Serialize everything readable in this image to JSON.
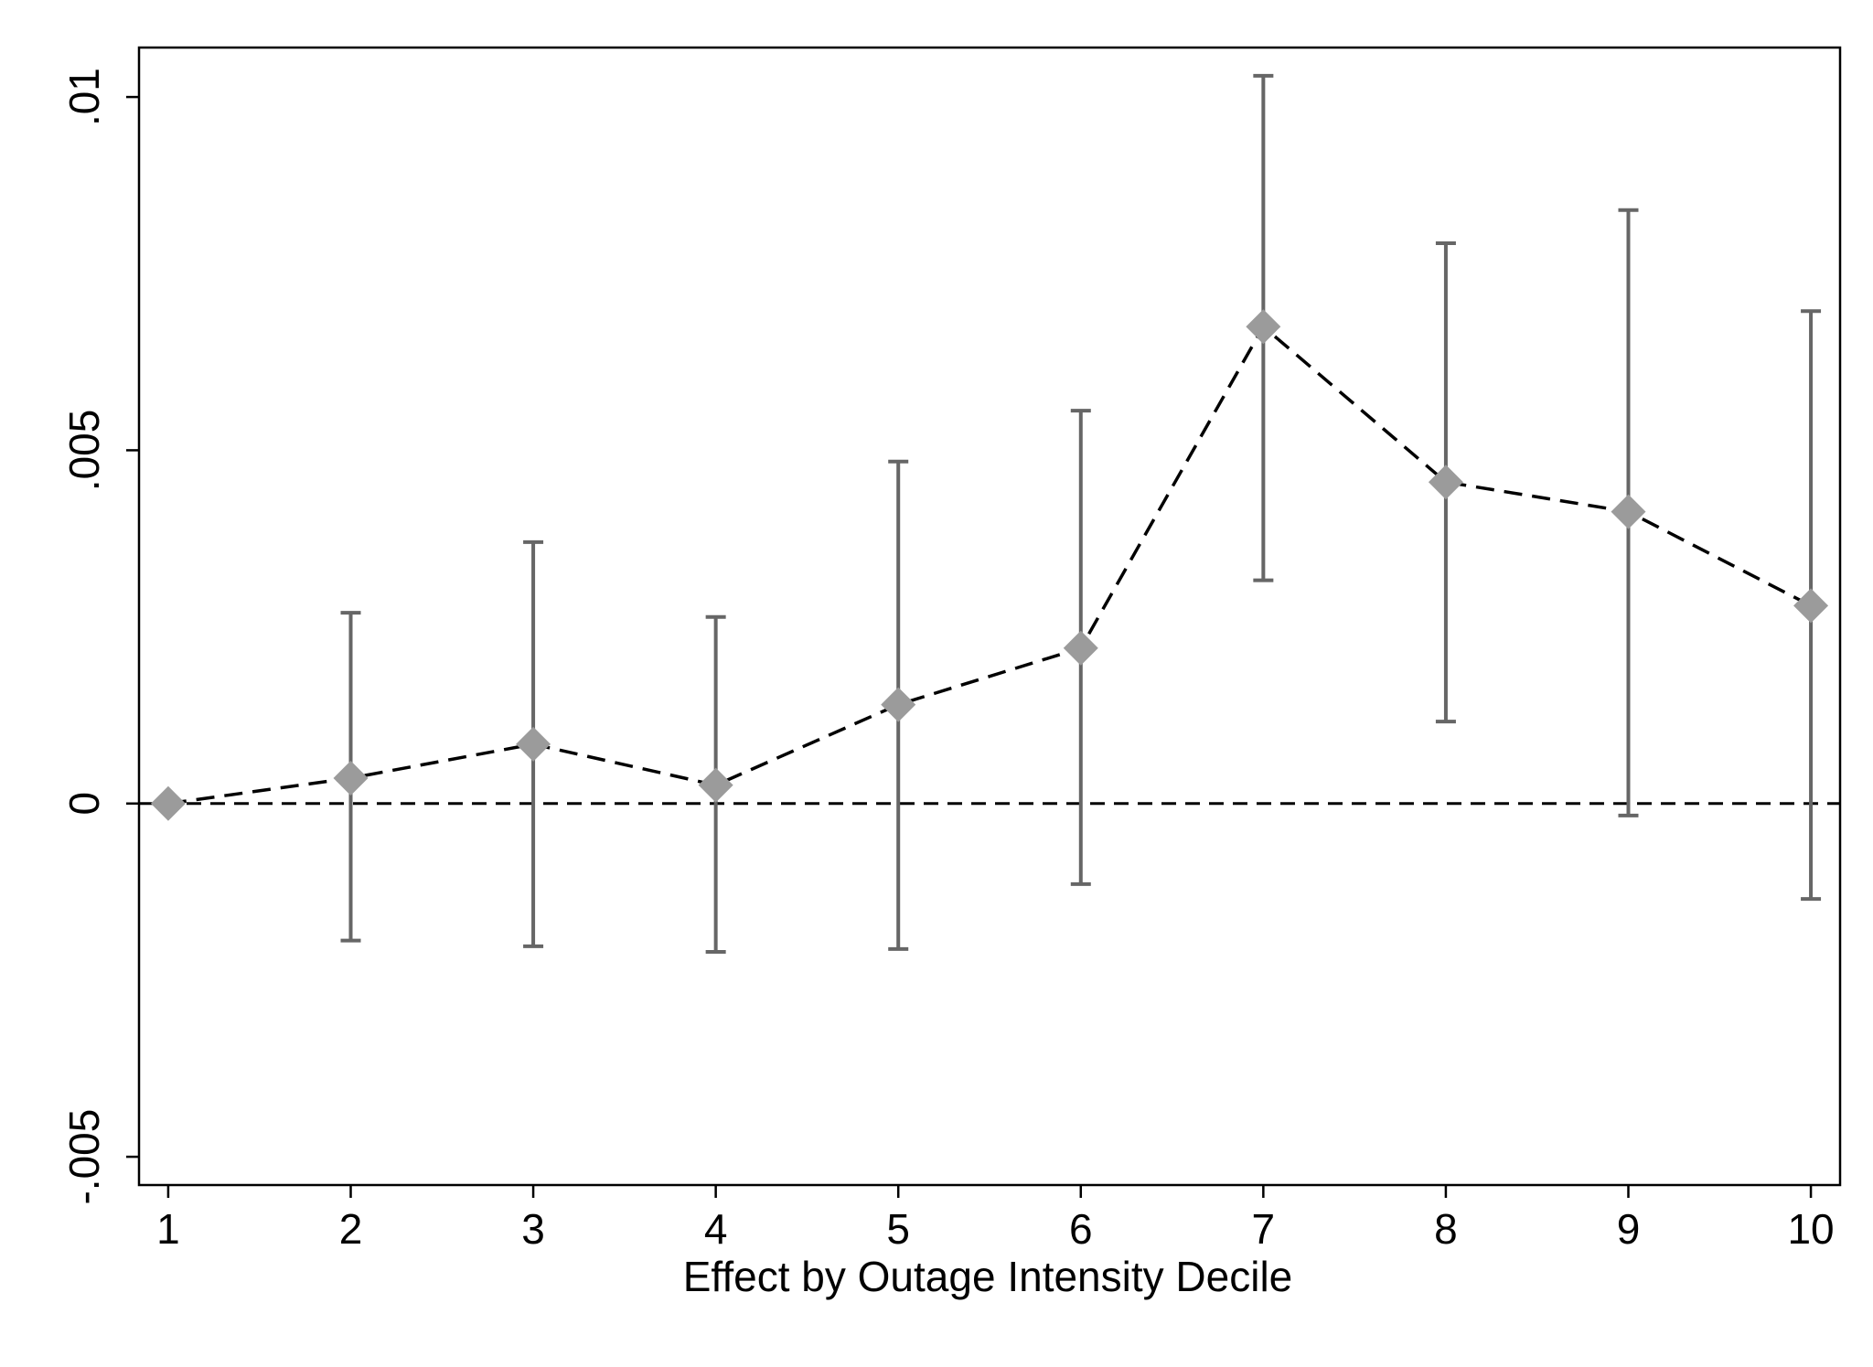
{
  "chart_data": {
    "type": "scatter",
    "title": "",
    "xlabel": "Effect by Outage Intensity Decile",
    "ylabel": "",
    "x_ticks": [
      "1",
      "2",
      "3",
      "4",
      "5",
      "6",
      "7",
      "8",
      "9",
      "10"
    ],
    "y_ticks": [
      {
        "value": -0.005,
        "label": "-.005"
      },
      {
        "value": 0,
        "label": "0"
      },
      {
        "value": 0.005,
        "label": ".005"
      },
      {
        "value": 0.01,
        "label": ".01"
      }
    ],
    "xlim": [
      0.84,
      10.16
    ],
    "ylim": [
      -0.0054,
      0.0107
    ],
    "reference_line": {
      "y": 0,
      "style": "dashed"
    },
    "grid": false,
    "legend": "none",
    "series": [
      {
        "x": [
          1,
          2,
          3,
          4,
          5,
          6,
          7,
          8,
          9,
          10
        ],
        "values": [
          0.0,
          0.00036,
          0.00084,
          0.00026,
          0.0014,
          0.0022,
          0.00675,
          0.00455,
          0.00413,
          0.0028
        ],
        "ci_low": [
          0.0,
          -0.00194,
          -0.00202,
          -0.0021,
          -0.00206,
          -0.00114,
          0.00316,
          0.00116,
          -0.00017,
          -0.00135
        ],
        "ci_high": [
          0.0,
          0.0027,
          0.0037,
          0.00264,
          0.00484,
          0.00556,
          0.0103,
          0.00793,
          0.0084,
          0.00697
        ],
        "marker": "diamond",
        "marker_color": "#9b9b9b",
        "line_style": "dashed",
        "line_color": "#000000",
        "errorbar_color": "#666666"
      }
    ]
  }
}
